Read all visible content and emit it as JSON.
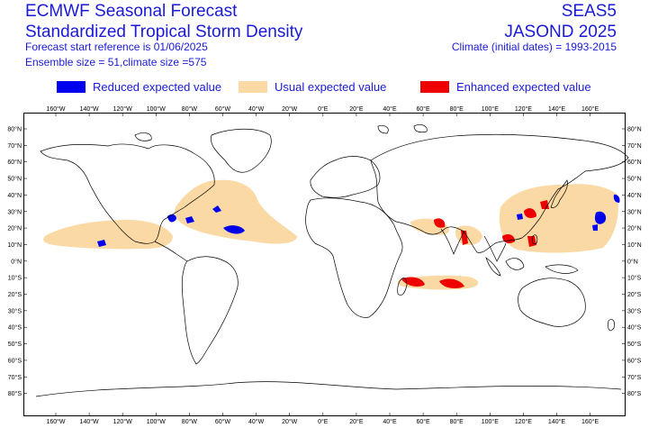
{
  "header": {
    "title_line1": "ECMWF Seasonal Forecast",
    "title_line2": "Standardized Tropical Storm Density",
    "forecast_start": "Forecast start reference is 01/06/2025",
    "ensemble": "Ensemble size = 51,climate size =575",
    "system": "SEAS5",
    "season": "JASOND 2025",
    "climate": "Climate (initial dates) = 1993-2015"
  },
  "legend": [
    {
      "label": "Reduced expected value",
      "color": "#0000ee"
    },
    {
      "label": "Usual expected value",
      "color": "#fad9a4"
    },
    {
      "label": "Enhanced expected value",
      "color": "#ee0000"
    }
  ],
  "axes": {
    "lon_labels": [
      "160°W",
      "140°W",
      "120°W",
      "100°W",
      "80°W",
      "60°W",
      "40°W",
      "20°W",
      "0°E",
      "20°E",
      "40°E",
      "60°E",
      "80°E",
      "100°E",
      "120°E",
      "140°E",
      "160°E"
    ],
    "lat_labels": [
      "80°N",
      "70°N",
      "60°N",
      "50°N",
      "40°N",
      "30°N",
      "20°N",
      "10°N",
      "0°N",
      "10°S",
      "20°S",
      "30°S",
      "40°S",
      "50°S",
      "60°S",
      "70°S",
      "80°S"
    ]
  },
  "colors": {
    "frame": "#000000",
    "coast": "#000000",
    "usual": "#fad9a4",
    "reduced": "#0000ee",
    "enhanced": "#ee0000"
  }
}
